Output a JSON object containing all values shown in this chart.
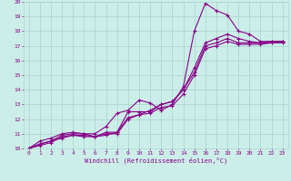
{
  "xlabel": "Windchill (Refroidissement éolien,°C)",
  "bg_color": "#cceee8",
  "grid_color": "#aad8d2",
  "line_color": "#880088",
  "xlim": [
    -0.5,
    23.5
  ],
  "ylim": [
    10,
    20
  ],
  "xticks": [
    0,
    1,
    2,
    3,
    4,
    5,
    6,
    7,
    8,
    9,
    10,
    11,
    12,
    13,
    14,
    15,
    16,
    17,
    18,
    19,
    20,
    21,
    22,
    23
  ],
  "yticks": [
    10,
    11,
    12,
    13,
    14,
    15,
    16,
    17,
    18,
    19,
    20
  ],
  "line1_x": [
    0,
    1,
    2,
    3,
    4,
    5,
    6,
    7,
    8,
    9,
    10,
    11,
    12,
    13,
    14,
    15,
    16,
    17,
    18,
    19,
    20,
    21,
    22,
    23
  ],
  "line1_y": [
    10.0,
    10.3,
    10.5,
    10.9,
    11.0,
    11.0,
    10.8,
    11.1,
    11.1,
    12.5,
    12.5,
    12.5,
    13.0,
    13.2,
    14.0,
    15.2,
    17.0,
    17.2,
    17.5,
    17.2,
    17.2,
    17.2,
    17.3,
    17.3
  ],
  "line2_x": [
    0,
    1,
    2,
    3,
    4,
    5,
    6,
    7,
    8,
    9,
    10,
    11,
    12,
    13,
    14,
    15,
    16,
    17,
    18,
    19,
    20,
    21,
    22,
    23
  ],
  "line2_y": [
    10.0,
    10.5,
    10.7,
    11.0,
    11.1,
    11.0,
    11.0,
    11.5,
    12.4,
    12.6,
    13.3,
    13.1,
    12.6,
    13.0,
    14.2,
    18.0,
    19.9,
    19.4,
    19.1,
    18.0,
    17.8,
    17.3,
    17.3,
    17.3
  ],
  "line3_x": [
    0,
    1,
    2,
    3,
    4,
    5,
    6,
    7,
    8,
    9,
    10,
    11,
    12,
    13,
    14,
    15,
    16,
    17,
    18,
    19,
    20,
    21,
    22,
    23
  ],
  "line3_y": [
    10.0,
    10.2,
    10.4,
    10.8,
    10.9,
    10.8,
    10.8,
    11.0,
    11.0,
    12.0,
    12.3,
    12.4,
    12.8,
    12.9,
    13.7,
    15.0,
    16.8,
    17.0,
    17.3,
    17.1,
    17.1,
    17.1,
    17.2,
    17.2
  ],
  "line4_x": [
    0,
    1,
    2,
    3,
    4,
    5,
    6,
    7,
    8,
    9,
    10,
    11,
    12,
    13,
    14,
    15,
    16,
    17,
    18,
    19,
    20,
    21,
    22,
    23
  ],
  "line4_y": [
    10.0,
    10.3,
    10.5,
    10.7,
    10.9,
    10.9,
    10.8,
    10.9,
    11.1,
    12.1,
    12.3,
    12.6,
    13.0,
    13.2,
    14.0,
    15.5,
    17.2,
    17.5,
    17.8,
    17.5,
    17.3,
    17.2,
    17.2,
    17.3
  ]
}
